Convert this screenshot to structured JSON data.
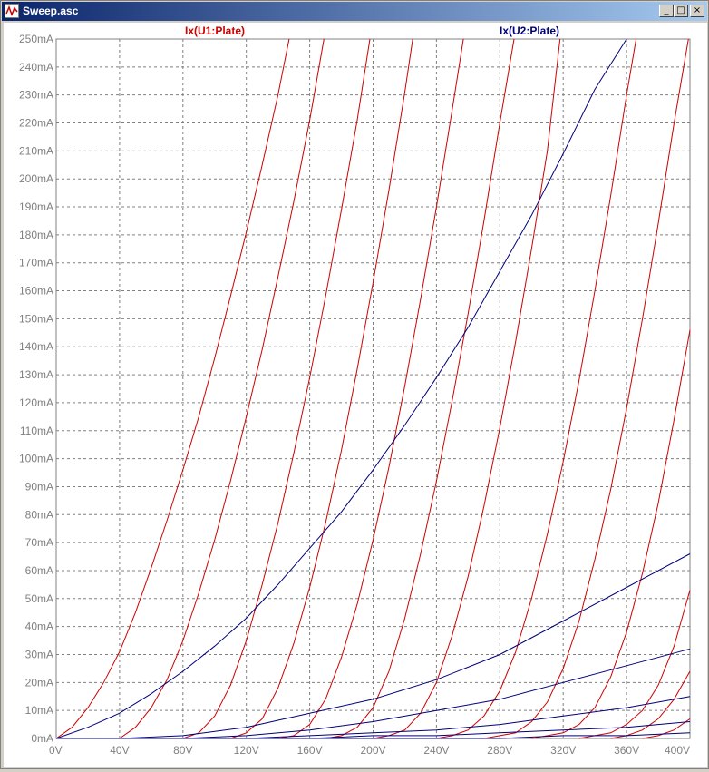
{
  "window": {
    "title": "Sweep.asc",
    "icon": "waveform-icon",
    "min_icon": "minimize-icon",
    "max_icon": "maximize-icon",
    "close_icon": "close-icon"
  },
  "chart_data": {
    "type": "line",
    "title": "",
    "xlabel": "",
    "ylabel": "",
    "xlim": [
      0,
      400
    ],
    "ylim": [
      0,
      250
    ],
    "grid": true,
    "legend_placement": "top",
    "x_ticks": [
      "0V",
      "40V",
      "80V",
      "120V",
      "160V",
      "200V",
      "240V",
      "280V",
      "320V",
      "360V",
      "400V"
    ],
    "y_ticks": [
      "0mA",
      "10mA",
      "20mA",
      "30mA",
      "40mA",
      "50mA",
      "60mA",
      "70mA",
      "80mA",
      "90mA",
      "100mA",
      "110mA",
      "120mA",
      "130mA",
      "140mA",
      "150mA",
      "160mA",
      "170mA",
      "180mA",
      "190mA",
      "200mA",
      "210mA",
      "220mA",
      "230mA",
      "240mA",
      "250mA"
    ],
    "x_unit": "V",
    "y_unit": "mA",
    "colors": {
      "u1": "#cc0000",
      "u2": "#00007a",
      "grid": "#808080",
      "axis_text": "#808080"
    },
    "series": [
      {
        "name": "Ix(U1:Plate)",
        "color": "#cc0000",
        "curves": [
          [
            [
              0,
              0
            ],
            [
              10,
              4
            ],
            [
              20,
              11
            ],
            [
              30,
              20
            ],
            [
              40,
              31
            ],
            [
              50,
              45
            ],
            [
              60,
              61
            ],
            [
              70,
              78
            ],
            [
              80,
              96
            ],
            [
              90,
              115
            ],
            [
              100,
              136
            ],
            [
              110,
              158
            ],
            [
              120,
              181
            ],
            [
              130,
              205
            ],
            [
              140,
              230
            ],
            [
              147,
              250
            ]
          ],
          [
            [
              40,
              0
            ],
            [
              50,
              4
            ],
            [
              60,
              11
            ],
            [
              70,
              21
            ],
            [
              80,
              35
            ],
            [
              90,
              52
            ],
            [
              100,
              71
            ],
            [
              110,
              92
            ],
            [
              120,
              115
            ],
            [
              130,
              139
            ],
            [
              140,
              165
            ],
            [
              150,
              192
            ],
            [
              160,
              221
            ],
            [
              169,
              250
            ]
          ],
          [
            [
              80,
              0
            ],
            [
              90,
              2
            ],
            [
              100,
              8
            ],
            [
              110,
              19
            ],
            [
              120,
              35
            ],
            [
              130,
              55
            ],
            [
              140,
              77
            ],
            [
              150,
              102
            ],
            [
              160,
              129
            ],
            [
              170,
              158
            ],
            [
              180,
              189
            ],
            [
              190,
              221
            ],
            [
              198,
              250
            ]
          ],
          [
            [
              110,
              0
            ],
            [
              120,
              2
            ],
            [
              130,
              7
            ],
            [
              140,
              18
            ],
            [
              150,
              34
            ],
            [
              160,
              54
            ],
            [
              170,
              77
            ],
            [
              180,
              103
            ],
            [
              190,
              132
            ],
            [
              200,
              163
            ],
            [
              210,
              196
            ],
            [
              220,
              231
            ],
            [
              225,
              250
            ]
          ],
          [
            [
              140,
              0
            ],
            [
              150,
              1
            ],
            [
              160,
              5
            ],
            [
              170,
              14
            ],
            [
              180,
              29
            ],
            [
              190,
              48
            ],
            [
              200,
              71
            ],
            [
              210,
              97
            ],
            [
              220,
              126
            ],
            [
              230,
              157
            ],
            [
              240,
              190
            ],
            [
              250,
              225
            ],
            [
              257,
              250
            ]
          ],
          [
            [
              170,
              0
            ],
            [
              180,
              1
            ],
            [
              190,
              4
            ],
            [
              200,
              11
            ],
            [
              210,
              24
            ],
            [
              220,
              43
            ],
            [
              230,
              66
            ],
            [
              240,
              92
            ],
            [
              250,
              121
            ],
            [
              260,
              152
            ],
            [
              270,
              185
            ],
            [
              280,
              220
            ],
            [
              289,
              250
            ]
          ],
          [
            [
              200,
              0
            ],
            [
              210,
              1
            ],
            [
              220,
              3
            ],
            [
              230,
              9
            ],
            [
              240,
              20
            ],
            [
              250,
              37
            ],
            [
              260,
              58
            ],
            [
              270,
              83
            ],
            [
              280,
              111
            ],
            [
              290,
              142
            ],
            [
              300,
              175
            ],
            [
              310,
              210
            ],
            [
              318,
              250
            ]
          ],
          [
            [
              240,
              0
            ],
            [
              250,
              1
            ],
            [
              260,
              3
            ],
            [
              270,
              8
            ],
            [
              280,
              17
            ],
            [
              290,
              31
            ],
            [
              300,
              50
            ],
            [
              310,
              73
            ],
            [
              320,
              99
            ],
            [
              330,
              128
            ],
            [
              340,
              160
            ],
            [
              350,
              194
            ],
            [
              360,
              230
            ],
            [
              366,
              250
            ]
          ],
          [
            [
              270,
              0
            ],
            [
              280,
              1
            ],
            [
              290,
              2
            ],
            [
              300,
              6
            ],
            [
              310,
              13
            ],
            [
              320,
              25
            ],
            [
              330,
              42
            ],
            [
              340,
              64
            ],
            [
              350,
              89
            ],
            [
              360,
              118
            ],
            [
              370,
              150
            ],
            [
              380,
              184
            ],
            [
              390,
              220
            ],
            [
              399,
              250
            ]
          ],
          [
            [
              300,
              0
            ],
            [
              310,
              1
            ],
            [
              320,
              2
            ],
            [
              330,
              5
            ],
            [
              340,
              11
            ],
            [
              350,
              22
            ],
            [
              360,
              38
            ],
            [
              370,
              59
            ],
            [
              380,
              84
            ],
            [
              390,
              114
            ],
            [
              400,
              146
            ]
          ],
          [
            [
              330,
              0
            ],
            [
              340,
              1
            ],
            [
              350,
              2
            ],
            [
              360,
              5
            ],
            [
              370,
              10
            ],
            [
              380,
              19
            ],
            [
              390,
              33
            ],
            [
              400,
              53
            ]
          ],
          [
            [
              350,
              0
            ],
            [
              360,
              1
            ],
            [
              370,
              3
            ],
            [
              380,
              7
            ],
            [
              390,
              14
            ],
            [
              400,
              24
            ]
          ],
          [
            [
              370,
              0
            ],
            [
              380,
              1
            ],
            [
              390,
              3
            ],
            [
              400,
              7
            ]
          ]
        ]
      },
      {
        "name": "Ix(U2:Plate)",
        "color": "#00007a",
        "curves": [
          [
            [
              0,
              0
            ],
            [
              20,
              4
            ],
            [
              40,
              9
            ],
            [
              60,
              16
            ],
            [
              80,
              24
            ],
            [
              100,
              33
            ],
            [
              120,
              43
            ],
            [
              140,
              55
            ],
            [
              160,
              68
            ],
            [
              180,
              81
            ],
            [
              200,
              96
            ],
            [
              220,
              112
            ],
            [
              240,
              129
            ],
            [
              260,
              147
            ],
            [
              280,
              167
            ],
            [
              300,
              187
            ],
            [
              320,
              209
            ],
            [
              340,
              232
            ],
            [
              360,
              250
            ]
          ],
          [
            [
              0,
              0
            ],
            [
              40,
              0
            ],
            [
              80,
              1
            ],
            [
              120,
              4
            ],
            [
              160,
              9
            ],
            [
              200,
              14
            ],
            [
              240,
              21
            ],
            [
              280,
              30
            ],
            [
              320,
              42
            ],
            [
              360,
              54
            ],
            [
              400,
              66
            ]
          ],
          [
            [
              0,
              0
            ],
            [
              80,
              0
            ],
            [
              120,
              1
            ],
            [
              160,
              3
            ],
            [
              200,
              6
            ],
            [
              240,
              10
            ],
            [
              280,
              14
            ],
            [
              320,
              20
            ],
            [
              360,
              26
            ],
            [
              400,
              32
            ]
          ],
          [
            [
              0,
              0
            ],
            [
              120,
              0
            ],
            [
              160,
              1
            ],
            [
              200,
              2
            ],
            [
              240,
              3
            ],
            [
              280,
              5
            ],
            [
              320,
              8
            ],
            [
              360,
              11
            ],
            [
              400,
              15
            ]
          ],
          [
            [
              0,
              0
            ],
            [
              160,
              0
            ],
            [
              200,
              1
            ],
            [
              240,
              1
            ],
            [
              280,
              2
            ],
            [
              320,
              3
            ],
            [
              360,
              4
            ],
            [
              400,
              6
            ]
          ],
          [
            [
              0,
              0
            ],
            [
              200,
              0
            ],
            [
              280,
              0
            ],
            [
              320,
              1
            ],
            [
              360,
              1
            ],
            [
              400,
              2
            ]
          ]
        ]
      }
    ]
  }
}
